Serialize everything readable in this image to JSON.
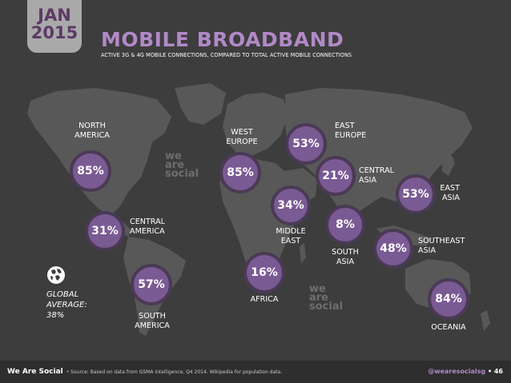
{
  "header": {
    "month": "JAN",
    "year": "2015",
    "title": "MOBILE BROADBAND",
    "subtitle": "ACTIVE 3G & 4G MOBILE CONNECTIONS, COMPARED TO TOTAL ACTIVE MOBILE CONNECTIONS"
  },
  "regions": [
    {
      "id": "north-america",
      "name_line1": "NORTH",
      "name_line2": "AMERICA",
      "value": "85%"
    },
    {
      "id": "central-america",
      "name_line1": "CENTRAL",
      "name_line2": "AMERICA",
      "value": "31%"
    },
    {
      "id": "south-america",
      "name_line1": "SOUTH",
      "name_line2": "AMERICA",
      "value": "57%"
    },
    {
      "id": "west-europe",
      "name_line1": "WEST",
      "name_line2": "EUROPE",
      "value": "85%"
    },
    {
      "id": "east-europe",
      "name_line1": "EAST",
      "name_line2": "EUROPE",
      "value": "53%"
    },
    {
      "id": "central-asia",
      "name_line1": "CENTRAL",
      "name_line2": "ASIA",
      "value": "21%"
    },
    {
      "id": "middle-east",
      "name_line1": "MIDDLE",
      "name_line2": "EAST",
      "value": "34%"
    },
    {
      "id": "south-asia",
      "name_line1": "SOUTH",
      "name_line2": "ASIA",
      "value": "8%"
    },
    {
      "id": "east-asia",
      "name_line1": "EAST",
      "name_line2": "ASIA",
      "value": "53%"
    },
    {
      "id": "southeast-asia",
      "name_line1": "SOUTHEAST",
      "name_line2": "ASIA",
      "value": "48%"
    },
    {
      "id": "africa",
      "name_line1": "AFRICA",
      "name_line2": "",
      "value": "16%"
    },
    {
      "id": "oceania",
      "name_line1": "OCEANIA",
      "name_line2": "",
      "value": "84%"
    }
  ],
  "global": {
    "line1": "GLOBAL",
    "line2": "AVERAGE:",
    "line3": "38%"
  },
  "watermark": {
    "line1": "we",
    "line2": "are",
    "line3": "social"
  },
  "footer": {
    "brand": "We Are Social",
    "source": "•  Source: Based on data from GSMA Intelligence, Q4 2014. Wikipedia for population data.",
    "handle": "@wearesocialsg",
    "page": "•  46"
  },
  "colors": {
    "background": "#3d3d3d",
    "map_land": "#5a5a5a",
    "bubble_fill": "#7a5a93",
    "bubble_border": "#4a3a55",
    "title_accent": "#b189c8",
    "badge_bg": "#a9a9a9"
  }
}
